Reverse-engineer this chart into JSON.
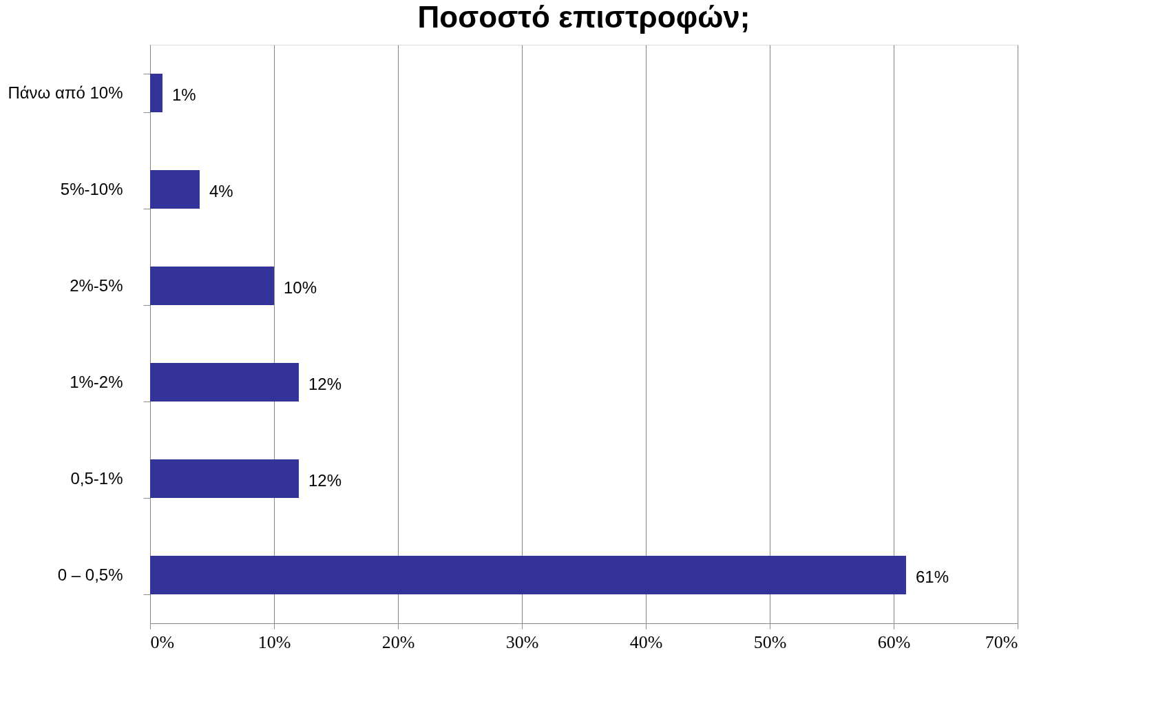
{
  "chart_data": {
    "type": "bar",
    "orientation": "horizontal",
    "title": "Ποσοστό επιστροφών;",
    "categories": [
      "Πάνω από 10%",
      "5%-10%",
      "2%-5%",
      "1%-2%",
      "0,5-1%",
      "0 – 0,5%"
    ],
    "values": [
      1,
      4,
      10,
      12,
      12,
      61
    ],
    "color": "#333399",
    "value_labels": [
      "1%",
      "4%",
      "10%",
      "12%",
      "12%",
      "61%"
    ],
    "xlim": [
      0,
      70
    ],
    "xticks": [
      {
        "value": 0,
        "label": "0%"
      },
      {
        "value": 10,
        "label": "10%"
      },
      {
        "value": 20,
        "label": "20%"
      },
      {
        "value": 30,
        "label": "30%"
      },
      {
        "value": 40,
        "label": "40%"
      },
      {
        "value": 50,
        "label": "50%"
      },
      {
        "value": 60,
        "label": "60%"
      },
      {
        "value": 70,
        "label": "70%"
      }
    ],
    "grid": "x"
  }
}
